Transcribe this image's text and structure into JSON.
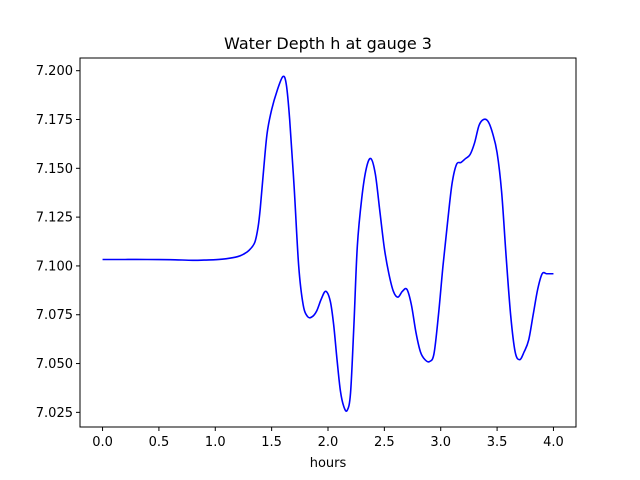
{
  "chart_data": {
    "type": "line",
    "title": "Water Depth h at gauge 3",
    "xlabel": "hours",
    "ylabel": "",
    "xlim": [
      -0.2,
      4.2
    ],
    "ylim": [
      7.0175,
      7.2065
    ],
    "xticks": [
      0.0,
      0.5,
      1.0,
      1.5,
      2.0,
      2.5,
      3.0,
      3.5,
      4.0
    ],
    "xtick_labels": [
      "0.0",
      "0.5",
      "1.0",
      "1.5",
      "2.0",
      "2.5",
      "3.0",
      "3.5",
      "4.0"
    ],
    "yticks": [
      7.025,
      7.05,
      7.075,
      7.1,
      7.125,
      7.15,
      7.175,
      7.2
    ],
    "ytick_labels": [
      "7.025",
      "7.050",
      "7.075",
      "7.100",
      "7.125",
      "7.150",
      "7.175",
      "7.200"
    ],
    "grid": false,
    "line_color": "#0000ff",
    "series": [
      {
        "x": [
          0.0,
          0.2,
          0.4,
          0.6,
          0.8,
          0.9,
          1.0,
          1.1,
          1.2,
          1.25,
          1.3,
          1.35,
          1.38,
          1.4,
          1.43,
          1.46,
          1.5,
          1.55,
          1.6,
          1.63,
          1.66,
          1.7,
          1.74,
          1.78,
          1.82,
          1.86,
          1.9,
          1.94,
          1.98,
          2.02,
          2.05,
          2.08,
          2.11,
          2.14,
          2.17,
          2.2,
          2.23,
          2.26,
          2.3,
          2.34,
          2.38,
          2.42,
          2.46,
          2.5,
          2.54,
          2.58,
          2.62,
          2.66,
          2.7,
          2.74,
          2.78,
          2.82,
          2.86,
          2.9,
          2.94,
          2.98,
          3.02,
          3.06,
          3.1,
          3.14,
          3.18,
          3.22,
          3.26,
          3.3,
          3.34,
          3.38,
          3.42,
          3.46,
          3.5,
          3.54,
          3.58,
          3.62,
          3.66,
          3.7,
          3.74,
          3.78,
          3.82,
          3.86,
          3.9,
          3.94,
          3.98,
          4.0
        ],
        "y": [
          7.1033,
          7.1033,
          7.1033,
          7.1032,
          7.1029,
          7.103,
          7.1032,
          7.1037,
          7.1048,
          7.106,
          7.108,
          7.112,
          7.12,
          7.13,
          7.15,
          7.168,
          7.18,
          7.19,
          7.197,
          7.193,
          7.175,
          7.14,
          7.1,
          7.08,
          7.074,
          7.074,
          7.077,
          7.083,
          7.087,
          7.082,
          7.07,
          7.052,
          7.036,
          7.028,
          7.026,
          7.035,
          7.07,
          7.11,
          7.135,
          7.15,
          7.155,
          7.147,
          7.128,
          7.109,
          7.096,
          7.087,
          7.084,
          7.087,
          7.088,
          7.08,
          7.066,
          7.056,
          7.052,
          7.051,
          7.055,
          7.075,
          7.1,
          7.122,
          7.142,
          7.152,
          7.153,
          7.155,
          7.157,
          7.163,
          7.172,
          7.175,
          7.174,
          7.168,
          7.158,
          7.138,
          7.105,
          7.075,
          7.056,
          7.052,
          7.056,
          7.062,
          7.075,
          7.088,
          7.096,
          7.096,
          7.096,
          7.096
        ]
      }
    ]
  }
}
